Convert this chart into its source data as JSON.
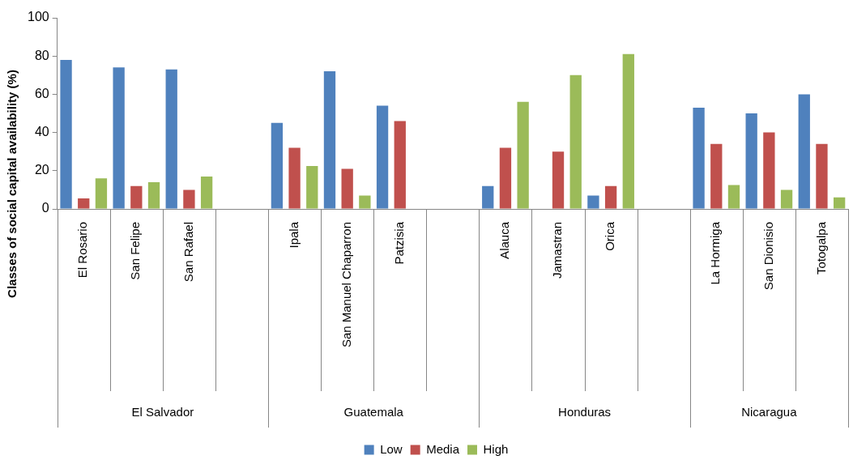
{
  "chart_data": {
    "type": "bar",
    "ylabel": "Classes of social capital availability (%)",
    "categories": [
      "El Rosario",
      "San Felipe",
      "San Rafael",
      null,
      "Ipala",
      "San Manuel Chaparron",
      "Patzisia",
      null,
      "Alauca",
      "Jamastran",
      "Orica",
      null,
      "La Hormiga",
      "San Dionisio",
      "Totogalpa"
    ],
    "series": [
      {
        "name": "Low",
        "color": "#4f81bd",
        "values": [
          78,
          74,
          73,
          null,
          45,
          72,
          54,
          null,
          12,
          0,
          7,
          null,
          53,
          50,
          60
        ]
      },
      {
        "name": "Media",
        "color": "#c0504d",
        "values": [
          5.5,
          12,
          10,
          null,
          32,
          21,
          46,
          null,
          32,
          30,
          12,
          null,
          34,
          40,
          34
        ]
      },
      {
        "name": "High",
        "color": "#9bbb59",
        "values": [
          16,
          14,
          17,
          null,
          22.5,
          7,
          0,
          null,
          56,
          70,
          81,
          null,
          12.5,
          10,
          6
        ]
      }
    ],
    "ylim": [
      0,
      100
    ],
    "yticks": [
      0,
      20,
      40,
      60,
      80,
      100
    ],
    "grid": false,
    "legend": "bottom",
    "annotations": [
      "El Salvador",
      "Guatemala",
      "Honduras",
      "Nicaragua"
    ]
  }
}
